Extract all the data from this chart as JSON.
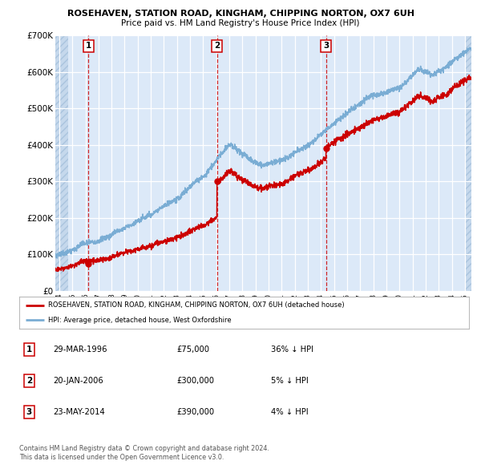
{
  "title1": "ROSEHAVEN, STATION ROAD, KINGHAM, CHIPPING NORTON, OX7 6UH",
  "title2": "Price paid vs. HM Land Registry's House Price Index (HPI)",
  "legend_red": "ROSEHAVEN, STATION ROAD, KINGHAM, CHIPPING NORTON, OX7 6UH (detached house)",
  "legend_blue": "HPI: Average price, detached house, West Oxfordshire",
  "table": [
    {
      "num": "1",
      "date": "29-MAR-1996",
      "price": "£75,000",
      "pct": "36% ↓ HPI"
    },
    {
      "num": "2",
      "date": "20-JAN-2006",
      "price": "£300,000",
      "pct": "5% ↓ HPI"
    },
    {
      "num": "3",
      "date": "23-MAY-2014",
      "price": "£390,000",
      "pct": "4% ↓ HPI"
    }
  ],
  "footer1": "Contains HM Land Registry data © Crown copyright and database right 2024.",
  "footer2": "This data is licensed under the Open Government Licence v3.0.",
  "sale_dates_year": [
    1996.24,
    2006.05,
    2014.39
  ],
  "sale_prices": [
    75000,
    300000,
    390000
  ],
  "bg_chart": "#dce9f8",
  "red_line": "#cc0000",
  "blue_line": "#7aadd4",
  "dashed_red": "#cc0000",
  "ylim": [
    0,
    700000
  ],
  "xlim_start": 1993.7,
  "xlim_end": 2025.5
}
